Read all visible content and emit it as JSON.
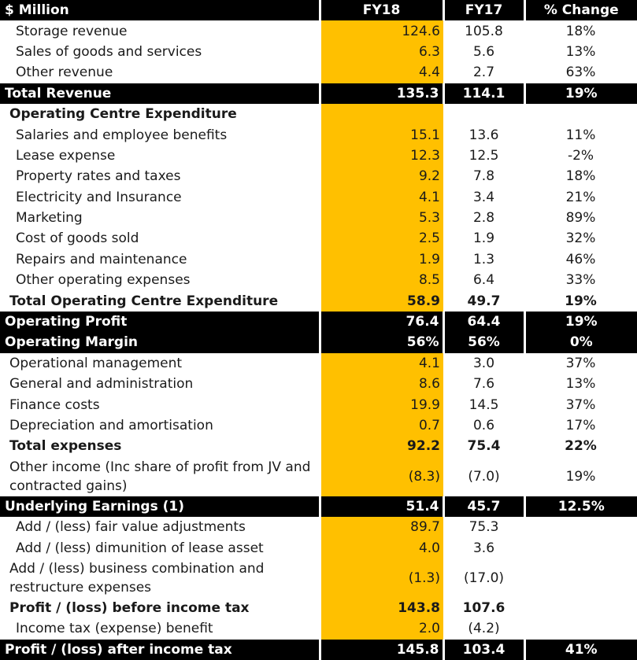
{
  "header": {
    "label": "$ Million",
    "fy18": "FY18",
    "fy17": "FY17",
    "pct": "% Change"
  },
  "rows": [
    {
      "label": "Storage revenue",
      "fy18": "124.6",
      "fy17": "105.8",
      "pct": "18%"
    },
    {
      "label": "Sales of goods and services",
      "fy18": "6.3",
      "fy17": "5.6",
      "pct": "13%"
    },
    {
      "label": "Other revenue",
      "fy18": "4.4",
      "fy17": "2.7",
      "pct": "63%"
    },
    {
      "label": "Total Revenue",
      "fy18": "135.3",
      "fy17": "114.1",
      "pct": "19%"
    },
    {
      "label": "Operating Centre Expenditure",
      "fy18": "",
      "fy17": "",
      "pct": ""
    },
    {
      "label": "Salaries and employee benefits",
      "fy18": "15.1",
      "fy17": "13.6",
      "pct": "11%"
    },
    {
      "label": "Lease expense",
      "fy18": "12.3",
      "fy17": "12.5",
      "pct": "-2%"
    },
    {
      "label": "Property rates and taxes",
      "fy18": "9.2",
      "fy17": "7.8",
      "pct": "18%"
    },
    {
      "label": "Electricity and Insurance",
      "fy18": "4.1",
      "fy17": "3.4",
      "pct": "21%"
    },
    {
      "label": "Marketing",
      "fy18": "5.3",
      "fy17": "2.8",
      "pct": "89%"
    },
    {
      "label": "Cost of goods sold",
      "fy18": "2.5",
      "fy17": "1.9",
      "pct": "32%"
    },
    {
      "label": "Repairs and maintenance",
      "fy18": "1.9",
      "fy17": "1.3",
      "pct": "46%"
    },
    {
      "label": "Other operating expenses",
      "fy18": "8.5",
      "fy17": "6.4",
      "pct": "33%"
    },
    {
      "label": "Total Operating Centre Expenditure",
      "fy18": "58.9",
      "fy17": "49.7",
      "pct": "19%"
    },
    {
      "label": "Operating Profit",
      "fy18": "76.4",
      "fy17": "64.4",
      "pct": "19%"
    },
    {
      "label": "Operating Margin",
      "fy18": "56%",
      "fy17": "56%",
      "pct": "0%"
    },
    {
      "label": "Operational management",
      "fy18": "4.1",
      "fy17": "3.0",
      "pct": "37%"
    },
    {
      "label": "General and administration",
      "fy18": "8.6",
      "fy17": "7.6",
      "pct": "13%"
    },
    {
      "label": "Finance costs",
      "fy18": "19.9",
      "fy17": "14.5",
      "pct": "37%"
    },
    {
      "label": "Depreciation and amortisation",
      "fy18": "0.7",
      "fy17": "0.6",
      "pct": "17%"
    },
    {
      "label": "Total expenses",
      "fy18": "92.2",
      "fy17": "75.4",
      "pct": "22%"
    },
    {
      "label": "Other income (Inc share of profit from JV and contracted gains)",
      "fy18": "(8.3)",
      "fy17": "(7.0)",
      "pct": "19%"
    },
    {
      "label": "Underlying Earnings (1)",
      "fy18": "51.4",
      "fy17": "45.7",
      "pct": "12.5%"
    },
    {
      "label": "Add / (less) fair value adjustments",
      "fy18": "89.7",
      "fy17": "75.3",
      "pct": ""
    },
    {
      "label": "Add / (less) dimunition of lease asset",
      "fy18": "4.0",
      "fy17": "3.6",
      "pct": ""
    },
    {
      "label": "Add / (less) business combination and restructure expenses",
      "fy18": "(1.3)",
      "fy17": "(17.0)",
      "pct": ""
    },
    {
      "label": "Profit / (loss) before income tax",
      "fy18": "143.8",
      "fy17": "107.6",
      "pct": ""
    },
    {
      "label": "Income tax (expense) benefit",
      "fy18": "2.0",
      "fy17": "(4.2)",
      "pct": ""
    },
    {
      "label": "Profit / (loss) after income tax",
      "fy18": "145.8",
      "fy17": "103.4",
      "pct": "41%"
    }
  ],
  "colors": {
    "highlight": "#ffc000",
    "dark": "#000000"
  }
}
